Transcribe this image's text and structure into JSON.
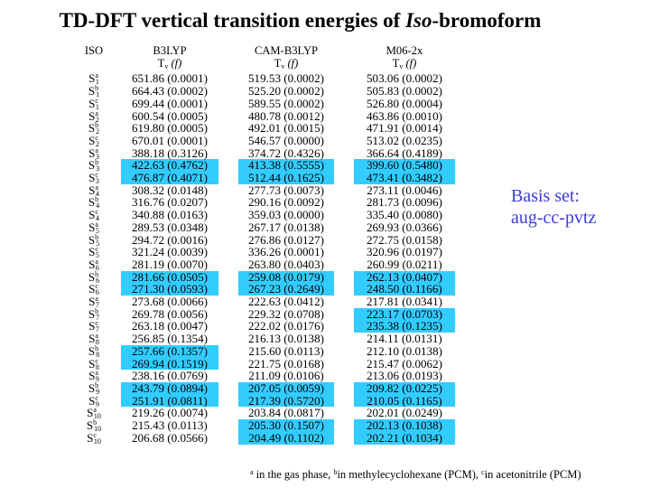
{
  "title_main": "TD-DFT vertical transition energies of ",
  "title_em": "Iso",
  "title_tail": "-bromoform",
  "headers": {
    "col0": "ISO",
    "methods": [
      "B3LYP",
      "CAM-B3LYP",
      "M06-2x"
    ],
    "sub_T": "T",
    "sub_v": "v",
    "sub_f": "(f)"
  },
  "rows": [
    {
      "n": "1",
      "s": "a",
      "v": [
        "651.86 (0.0001)",
        "519.53 (0.0002)",
        "503.06 (0.0002)"
      ],
      "hl": [
        false,
        false,
        false
      ]
    },
    {
      "n": "1",
      "s": "b",
      "v": [
        "664.43 (0.0002)",
        "525.20 (0.0002)",
        "505.83 (0.0002)"
      ],
      "hl": [
        false,
        false,
        false
      ]
    },
    {
      "n": "1",
      "s": "c",
      "v": [
        "699.44 (0.0001)",
        "589.55 (0.0002)",
        "526.80 (0.0004)"
      ],
      "hl": [
        false,
        false,
        false
      ]
    },
    {
      "n": "2",
      "s": "a",
      "v": [
        "600.54 (0.0005)",
        "480.78 (0.0012)",
        "463.86 (0.0010)"
      ],
      "hl": [
        false,
        false,
        false
      ]
    },
    {
      "n": "2",
      "s": "b",
      "v": [
        "619.80 (0.0005)",
        "492.01 (0.0015)",
        "471.91 (0.0014)"
      ],
      "hl": [
        false,
        false,
        false
      ]
    },
    {
      "n": "2",
      "s": "c",
      "v": [
        "670.01 (0.0001)",
        "546.57 (0.0000)",
        "513.02 (0.0235)"
      ],
      "hl": [
        false,
        false,
        false
      ]
    },
    {
      "n": "3",
      "s": "a",
      "v": [
        "388.18 (0.3126)",
        "374.72 (0.4326)",
        "366.64 (0.4189)"
      ],
      "hl": [
        false,
        false,
        false
      ]
    },
    {
      "n": "3",
      "s": "b",
      "v": [
        "422.63 (0.4762)",
        "413.38 (0.5555)",
        "399.60 (0.5480)"
      ],
      "hl": [
        true,
        true,
        true
      ]
    },
    {
      "n": "3",
      "s": "c",
      "v": [
        "476.87 (0.4071)",
        "512.44 (0.1625)",
        "473.41 (0.3482)"
      ],
      "hl": [
        true,
        true,
        true
      ]
    },
    {
      "n": "4",
      "s": "a",
      "v": [
        "308.32 (0.0148)",
        "277.73 (0.0073)",
        "273.11 (0.0046)"
      ],
      "hl": [
        false,
        false,
        false
      ]
    },
    {
      "n": "4",
      "s": "b",
      "v": [
        "316.76 (0.0207)",
        "290.16 (0.0092)",
        "281.73 (0.0096)"
      ],
      "hl": [
        false,
        false,
        false
      ]
    },
    {
      "n": "4",
      "s": "c",
      "v": [
        "340.88 (0.0163)",
        "359.03 (0.0000)",
        "335.40 (0.0080)"
      ],
      "hl": [
        false,
        false,
        false
      ]
    },
    {
      "n": "5",
      "s": "a",
      "v": [
        "289.53 (0.0348)",
        "267.17 (0.0138)",
        "269.93 (0.0366)"
      ],
      "hl": [
        false,
        false,
        false
      ]
    },
    {
      "n": "5",
      "s": "b",
      "v": [
        "294.72 (0.0016)",
        "276.86 (0.0127)",
        "272.75 (0.0158)"
      ],
      "hl": [
        false,
        false,
        false
      ]
    },
    {
      "n": "5",
      "s": "c",
      "v": [
        "321.24 (0.0039)",
        "336.26 (0.0001)",
        "320.96 (0.0197)"
      ],
      "hl": [
        false,
        false,
        false
      ]
    },
    {
      "n": "6",
      "s": "a",
      "v": [
        "281.19 (0.0070)",
        "263.80 (0.0403)",
        "260.99 (0.0211)"
      ],
      "hl": [
        false,
        false,
        false
      ]
    },
    {
      "n": "6",
      "s": "b",
      "v": [
        "281.66 (0.0505)",
        "259.08 (0.0179)",
        "262.13 (0.0407)"
      ],
      "hl": [
        true,
        true,
        true
      ]
    },
    {
      "n": "6",
      "s": "c",
      "v": [
        "271.30 (0.0593)",
        "267.23 (0.2649)",
        "248.50 (0.1166)"
      ],
      "hl": [
        true,
        true,
        true
      ]
    },
    {
      "n": "7",
      "s": "a",
      "v": [
        "273.68 (0.0066)",
        "222.63 (0.0412)",
        "217.81 (0.0341)"
      ],
      "hl": [
        false,
        false,
        false
      ]
    },
    {
      "n": "7",
      "s": "b",
      "v": [
        "269.78 (0.0056)",
        "229.32 (0.0708)",
        "223.17 (0.0703)"
      ],
      "hl": [
        false,
        false,
        true
      ]
    },
    {
      "n": "7",
      "s": "c",
      "v": [
        "263.18 (0.0047)",
        "222.02 (0.0176)",
        "235.38 (0.1235)"
      ],
      "hl": [
        false,
        false,
        true
      ]
    },
    {
      "n": "8",
      "s": "a",
      "v": [
        "256.85 (0.1354)",
        "216.13 (0.0138)",
        "214.11 (0.0131)"
      ],
      "hl": [
        false,
        false,
        false
      ]
    },
    {
      "n": "8",
      "s": "b",
      "v": [
        "257.66 (0.1357)",
        "215.60 (0.0113)",
        "212.10 (0.0138)"
      ],
      "hl": [
        true,
        false,
        false
      ]
    },
    {
      "n": "8",
      "s": "c",
      "v": [
        "269.94 (0.1519)",
        "221.75 (0.0168)",
        "215.47 (0.0062)"
      ],
      "hl": [
        true,
        false,
        false
      ]
    },
    {
      "n": "9",
      "s": "a",
      "v": [
        "238.16 (0.0769)",
        "211.09 (0.0106)",
        "213.06 (0.0193)"
      ],
      "hl": [
        false,
        false,
        false
      ]
    },
    {
      "n": "9",
      "s": "b",
      "v": [
        "243.79 (0.0894)",
        "207.05 (0.0059)",
        "209.82 (0.0225)"
      ],
      "hl": [
        true,
        true,
        true
      ]
    },
    {
      "n": "9",
      "s": "c",
      "v": [
        "251.91 (0.0811)",
        "217.39 (0.5720)",
        "210.05 (0.1165)"
      ],
      "hl": [
        true,
        true,
        true
      ]
    },
    {
      "n": "10",
      "s": "a",
      "v": [
        "219.26 (0.0074)",
        "203.84 (0.0817)",
        "202.01 (0.0249)"
      ],
      "hl": [
        false,
        false,
        false
      ]
    },
    {
      "n": "10",
      "s": "b",
      "v": [
        "215.43 (0.0113)",
        "205.30 (0.1507)",
        "202.13 (0.1038)"
      ],
      "hl": [
        false,
        true,
        true
      ]
    },
    {
      "n": "10",
      "s": "c",
      "v": [
        "206.68 (0.0566)",
        "204.49 (0.1102)",
        "202.21 (0.1034)"
      ],
      "hl": [
        false,
        true,
        true
      ]
    }
  ],
  "basis_line1": "Basis set:",
  "basis_line2": "aug-cc-pvtz",
  "footnote": {
    "a": "a",
    "a_text": " in the gas phase, ",
    "b": "b",
    "b_text": "in methylecyclohexane (PCM), ",
    "c": "c",
    "c_text": "in acetonitrile (PCM)"
  },
  "colors": {
    "highlight": "#33ccff",
    "basis_text": "#3b3bd6"
  }
}
